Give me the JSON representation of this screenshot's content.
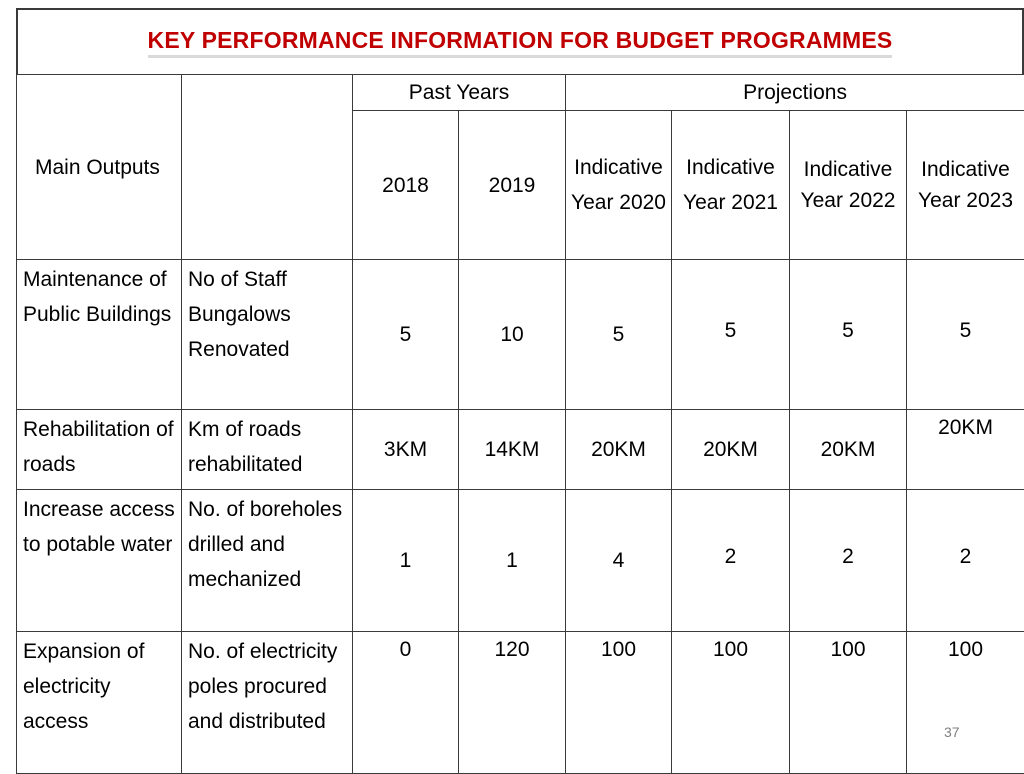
{
  "title": "KEY PERFORMANCE INFORMATION FOR BUDGET PROGRAMMES",
  "header": {
    "main_outputs": "Main Outputs",
    "past_years": "Past Years",
    "projections": "Projections",
    "years": [
      "2018",
      "2019",
      "Indicative Year 2020",
      "Indicative Year 2021",
      "Indicative Year 2022",
      "Indicative Year 2023"
    ]
  },
  "rows": [
    {
      "output": "Maintenance of Public Buildings",
      "indicator": "No of Staff Bungalows Renovated",
      "values": [
        "5",
        "10",
        "5",
        "5",
        "5",
        "5"
      ]
    },
    {
      "output": "Rehabilitation of roads",
      "indicator": "Km of roads rehabilitated",
      "values": [
        "3KM",
        "14KM",
        "20KM",
        "20KM",
        "20KM",
        "20KM"
      ]
    },
    {
      "output": "Increase access to potable water",
      "indicator": "No. of boreholes drilled and mechanized",
      "values": [
        "1",
        "1",
        "4",
        "2",
        "2",
        "2"
      ]
    },
    {
      "output": "Expansion of electricity access",
      "indicator": "No. of electricity poles procured and distributed",
      "values": [
        "0",
        "120",
        "100",
        "100",
        "100",
        "100"
      ]
    }
  ],
  "page_number": "37"
}
